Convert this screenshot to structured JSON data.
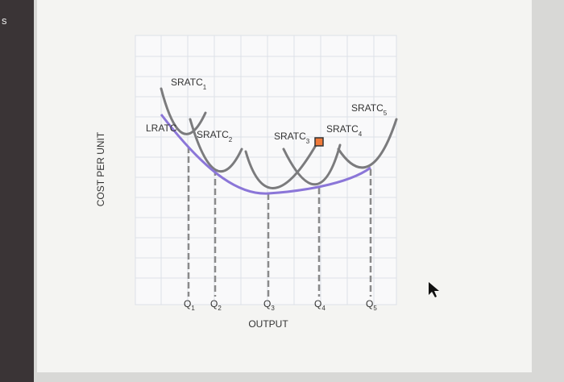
{
  "left_label": "s",
  "curves": [
    {
      "label": "SRATC",
      "sub": "1"
    },
    {
      "label": "SRATC",
      "sub": "2"
    },
    {
      "label": "SRATC",
      "sub": "3"
    },
    {
      "label": "SRATC",
      "sub": "4"
    },
    {
      "label": "SRATC",
      "sub": "5"
    }
  ],
  "lratc": "LRATC",
  "y_axis": "COST PER UNIT",
  "x_axis": "OUTPUT",
  "quantities": [
    {
      "label": "Q",
      "sub": "1"
    },
    {
      "label": "Q",
      "sub": "2"
    },
    {
      "label": "Q",
      "sub": "3"
    },
    {
      "label": "Q",
      "sub": "4"
    },
    {
      "label": "Q",
      "sub": "5"
    }
  ]
}
